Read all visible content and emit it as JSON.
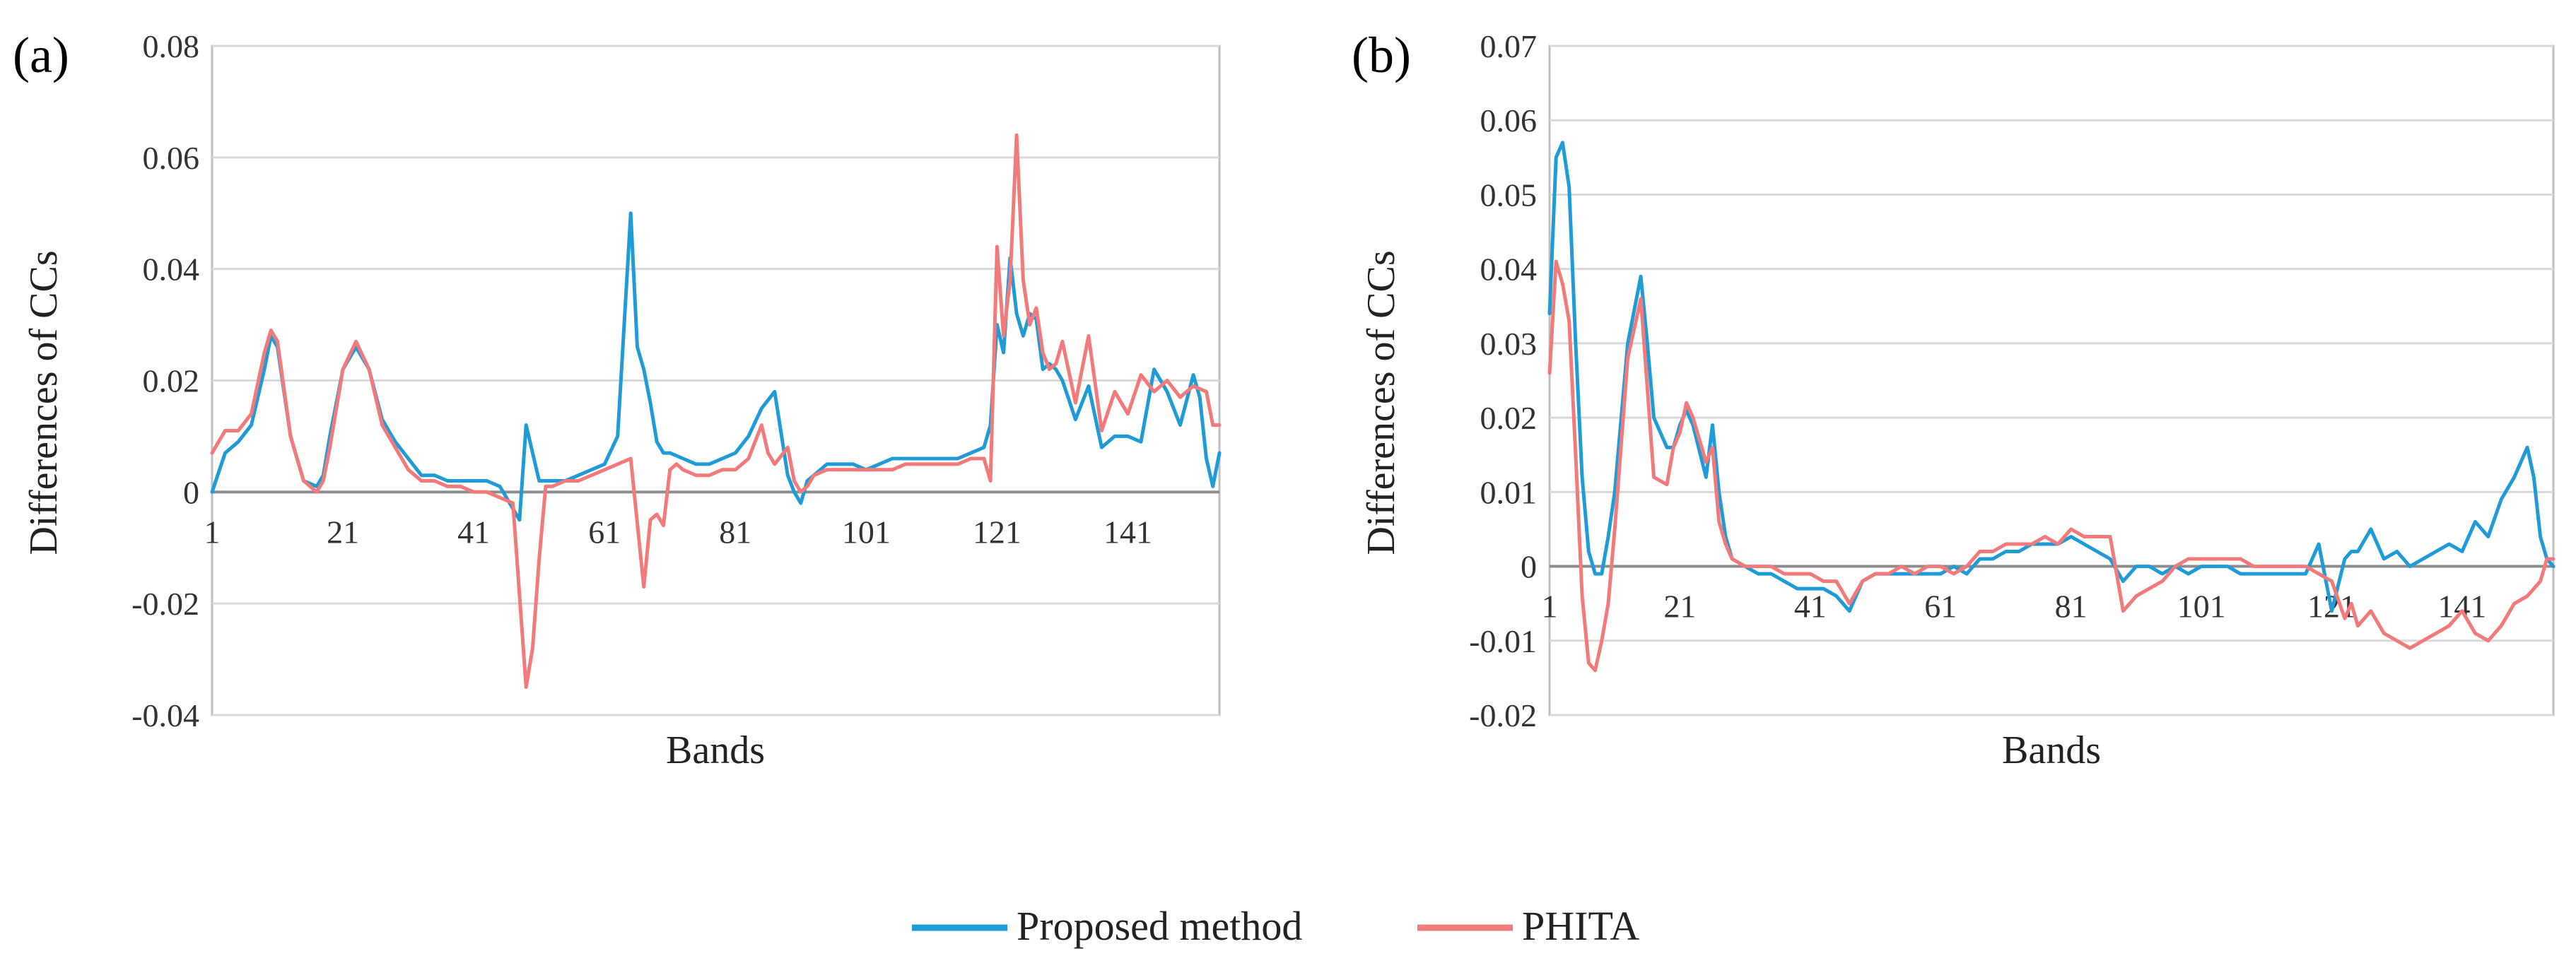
{
  "legend": [
    {
      "name": "Proposed method",
      "color": "#1f9bd7"
    },
    {
      "name": "PHITA",
      "color": "#f27a7a"
    }
  ],
  "chart_data": [
    {
      "type": "line",
      "panel_label": "(a)",
      "xlabel": "Bands",
      "ylabel": "Differences of CCs",
      "ylim": [
        -0.04,
        0.08
      ],
      "yticks": [
        -0.04,
        -0.02,
        0,
        0.02,
        0.04,
        0.06,
        0.08
      ],
      "ytick_labels": [
        "-0.04",
        "-0.02",
        "0",
        "0.02",
        "0.04",
        "0.06",
        "0.08"
      ],
      "xlim": [
        1,
        155
      ],
      "xticks": [
        1,
        21,
        41,
        61,
        81,
        101,
        121,
        141
      ],
      "xtick_labels": [
        "1",
        "21",
        "41",
        "61",
        "81",
        "101",
        "121",
        "141"
      ],
      "series": [
        {
          "name": "Proposed method",
          "color": "#1f9bd7",
          "x": [
            1,
            3,
            5,
            7,
            9,
            10,
            11,
            13,
            15,
            17,
            18,
            19,
            21,
            23,
            25,
            27,
            29,
            31,
            33,
            35,
            37,
            39,
            41,
            43,
            45,
            47,
            48,
            49,
            51,
            53,
            55,
            57,
            59,
            61,
            63,
            65,
            66,
            67,
            68,
            69,
            70,
            71,
            73,
            75,
            77,
            79,
            81,
            83,
            85,
            87,
            89,
            90,
            91,
            92,
            93,
            95,
            97,
            99,
            101,
            103,
            105,
            107,
            109,
            111,
            113,
            115,
            117,
            119,
            120,
            121,
            122,
            123,
            124,
            125,
            126,
            127,
            128,
            129,
            130,
            131,
            133,
            135,
            137,
            139,
            141,
            143,
            145,
            147,
            149,
            151,
            152,
            153,
            154,
            155
          ],
          "values": [
            0.0,
            0.007,
            0.009,
            0.012,
            0.022,
            0.028,
            0.026,
            0.01,
            0.002,
            0.001,
            0.003,
            0.01,
            0.022,
            0.026,
            0.022,
            0.013,
            0.009,
            0.006,
            0.003,
            0.003,
            0.002,
            0.002,
            0.002,
            0.002,
            0.001,
            -0.003,
            -0.005,
            0.012,
            0.002,
            0.002,
            0.002,
            0.003,
            0.004,
            0.005,
            0.01,
            0.05,
            0.026,
            0.022,
            0.016,
            0.009,
            0.007,
            0.007,
            0.006,
            0.005,
            0.005,
            0.006,
            0.007,
            0.01,
            0.015,
            0.018,
            0.003,
            0.0,
            -0.002,
            0.002,
            0.003,
            0.005,
            0.005,
            0.005,
            0.004,
            0.005,
            0.006,
            0.006,
            0.006,
            0.006,
            0.006,
            0.006,
            0.007,
            0.008,
            0.012,
            0.03,
            0.025,
            0.042,
            0.032,
            0.028,
            0.032,
            0.031,
            0.022,
            0.023,
            0.022,
            0.02,
            0.013,
            0.019,
            0.008,
            0.01,
            0.01,
            0.009,
            0.022,
            0.018,
            0.012,
            0.021,
            0.017,
            0.006,
            0.001,
            0.007
          ]
        },
        {
          "name": "PHITA",
          "color": "#f27a7a",
          "x": [
            1,
            3,
            5,
            7,
            9,
            10,
            11,
            13,
            15,
            17,
            18,
            19,
            21,
            23,
            25,
            27,
            29,
            31,
            33,
            35,
            37,
            39,
            41,
            43,
            45,
            47,
            49,
            50,
            51,
            52,
            53,
            55,
            57,
            59,
            61,
            63,
            65,
            67,
            68,
            69,
            70,
            71,
            72,
            73,
            75,
            77,
            79,
            81,
            83,
            85,
            86,
            87,
            89,
            90,
            91,
            92,
            93,
            95,
            97,
            99,
            101,
            103,
            105,
            107,
            109,
            111,
            113,
            115,
            117,
            119,
            120,
            121,
            122,
            123,
            124,
            125,
            126,
            127,
            128,
            129,
            130,
            131,
            133,
            135,
            137,
            139,
            141,
            143,
            145,
            147,
            149,
            151,
            153,
            154,
            155
          ],
          "values": [
            0.007,
            0.011,
            0.011,
            0.014,
            0.025,
            0.029,
            0.027,
            0.01,
            0.002,
            0.0,
            0.002,
            0.008,
            0.022,
            0.027,
            0.022,
            0.012,
            0.008,
            0.004,
            0.002,
            0.002,
            0.001,
            0.001,
            0.0,
            0.0,
            -0.001,
            -0.002,
            -0.035,
            -0.028,
            -0.012,
            0.001,
            0.001,
            0.002,
            0.002,
            0.003,
            0.004,
            0.005,
            0.006,
            -0.017,
            -0.005,
            -0.004,
            -0.006,
            0.004,
            0.005,
            0.004,
            0.003,
            0.003,
            0.004,
            0.004,
            0.006,
            0.012,
            0.007,
            0.005,
            0.008,
            0.002,
            0.0,
            0.001,
            0.003,
            0.004,
            0.004,
            0.004,
            0.004,
            0.004,
            0.004,
            0.005,
            0.005,
            0.005,
            0.005,
            0.005,
            0.006,
            0.006,
            0.002,
            0.044,
            0.028,
            0.038,
            0.064,
            0.038,
            0.03,
            0.033,
            0.025,
            0.022,
            0.023,
            0.027,
            0.016,
            0.028,
            0.011,
            0.018,
            0.014,
            0.021,
            0.018,
            0.02,
            0.017,
            0.019,
            0.018,
            0.012,
            0.012
          ]
        }
      ]
    },
    {
      "type": "line",
      "panel_label": "(b)",
      "xlabel": "Bands",
      "ylabel": "Differences of CCs",
      "ylim": [
        -0.02,
        0.07
      ],
      "yticks": [
        -0.02,
        -0.01,
        0,
        0.01,
        0.02,
        0.03,
        0.04,
        0.05,
        0.06,
        0.07
      ],
      "ytick_labels": [
        "-0.02",
        "-0.01",
        "0",
        "0.01",
        "0.02",
        "0.03",
        "0.04",
        "0.05",
        "0.06",
        "0.07"
      ],
      "xlim": [
        1,
        155
      ],
      "xticks": [
        1,
        21,
        41,
        61,
        81,
        101,
        121,
        141
      ],
      "xtick_labels": [
        "1",
        "21",
        "41",
        "61",
        "81",
        "101",
        "121",
        "141"
      ],
      "series": [
        {
          "name": "Proposed method",
          "color": "#1f9bd7",
          "x": [
            1,
            2,
            3,
            4,
            5,
            6,
            7,
            8,
            9,
            10,
            11,
            13,
            15,
            16,
            17,
            19,
            20,
            21,
            22,
            23,
            25,
            26,
            27,
            28,
            29,
            31,
            33,
            35,
            37,
            39,
            41,
            43,
            45,
            47,
            49,
            51,
            53,
            55,
            57,
            59,
            61,
            63,
            65,
            67,
            69,
            71,
            73,
            75,
            77,
            79,
            81,
            83,
            85,
            87,
            89,
            91,
            93,
            95,
            97,
            99,
            101,
            103,
            105,
            107,
            109,
            111,
            113,
            115,
            117,
            119,
            121,
            123,
            124,
            125,
            127,
            129,
            131,
            133,
            135,
            137,
            139,
            141,
            143,
            145,
            147,
            149,
            151,
            152,
            153,
            154,
            155
          ],
          "values": [
            0.034,
            0.055,
            0.057,
            0.051,
            0.03,
            0.012,
            0.002,
            -0.001,
            -0.001,
            0.004,
            0.01,
            0.03,
            0.039,
            0.03,
            0.02,
            0.016,
            0.016,
            0.019,
            0.021,
            0.019,
            0.012,
            0.019,
            0.01,
            0.004,
            0.001,
            0.0,
            -0.001,
            -0.001,
            -0.002,
            -0.003,
            -0.003,
            -0.003,
            -0.004,
            -0.006,
            -0.002,
            -0.001,
            -0.001,
            -0.001,
            -0.001,
            -0.001,
            -0.001,
            0.0,
            -0.001,
            0.001,
            0.001,
            0.002,
            0.002,
            0.003,
            0.003,
            0.003,
            0.004,
            0.003,
            0.002,
            0.001,
            -0.002,
            0.0,
            0.0,
            -0.001,
            0.0,
            -0.001,
            0.0,
            0.0,
            0.0,
            -0.001,
            -0.001,
            -0.001,
            -0.001,
            -0.001,
            -0.001,
            0.003,
            -0.006,
            0.001,
            0.002,
            0.002,
            0.005,
            0.001,
            0.002,
            0.0,
            0.001,
            0.002,
            0.003,
            0.002,
            0.006,
            0.004,
            0.009,
            0.012,
            0.016,
            0.012,
            0.004,
            0.001,
            0.0
          ]
        },
        {
          "name": "PHITA",
          "color": "#f27a7a",
          "x": [
            1,
            2,
            3,
            4,
            5,
            6,
            7,
            8,
            9,
            10,
            11,
            13,
            15,
            16,
            17,
            19,
            20,
            21,
            22,
            23,
            25,
            26,
            27,
            28,
            29,
            31,
            33,
            35,
            37,
            39,
            41,
            43,
            45,
            47,
            49,
            51,
            53,
            55,
            57,
            59,
            61,
            63,
            65,
            67,
            69,
            71,
            73,
            75,
            77,
            79,
            81,
            83,
            85,
            87,
            89,
            91,
            93,
            95,
            97,
            99,
            101,
            103,
            105,
            107,
            109,
            111,
            113,
            115,
            117,
            119,
            121,
            123,
            124,
            125,
            127,
            129,
            131,
            133,
            135,
            137,
            139,
            141,
            143,
            145,
            147,
            149,
            151,
            153,
            154,
            155
          ],
          "values": [
            0.026,
            0.041,
            0.038,
            0.033,
            0.015,
            -0.004,
            -0.013,
            -0.014,
            -0.01,
            -0.005,
            0.005,
            0.028,
            0.036,
            0.024,
            0.012,
            0.011,
            0.016,
            0.018,
            0.022,
            0.02,
            0.014,
            0.016,
            0.006,
            0.003,
            0.001,
            0.0,
            0.0,
            0.0,
            -0.001,
            -0.001,
            -0.001,
            -0.002,
            -0.002,
            -0.005,
            -0.002,
            -0.001,
            -0.001,
            0.0,
            -0.001,
            0.0,
            0.0,
            -0.001,
            0.0,
            0.002,
            0.002,
            0.003,
            0.003,
            0.003,
            0.004,
            0.003,
            0.005,
            0.004,
            0.004,
            0.004,
            -0.006,
            -0.004,
            -0.003,
            -0.002,
            0.0,
            0.001,
            0.001,
            0.001,
            0.001,
            0.001,
            0.0,
            0.0,
            0.0,
            0.0,
            0.0,
            -0.001,
            -0.002,
            -0.007,
            -0.005,
            -0.008,
            -0.006,
            -0.009,
            -0.01,
            -0.011,
            -0.01,
            -0.009,
            -0.008,
            -0.006,
            -0.009,
            -0.01,
            -0.008,
            -0.005,
            -0.004,
            -0.002,
            0.001,
            0.001
          ]
        }
      ]
    }
  ]
}
